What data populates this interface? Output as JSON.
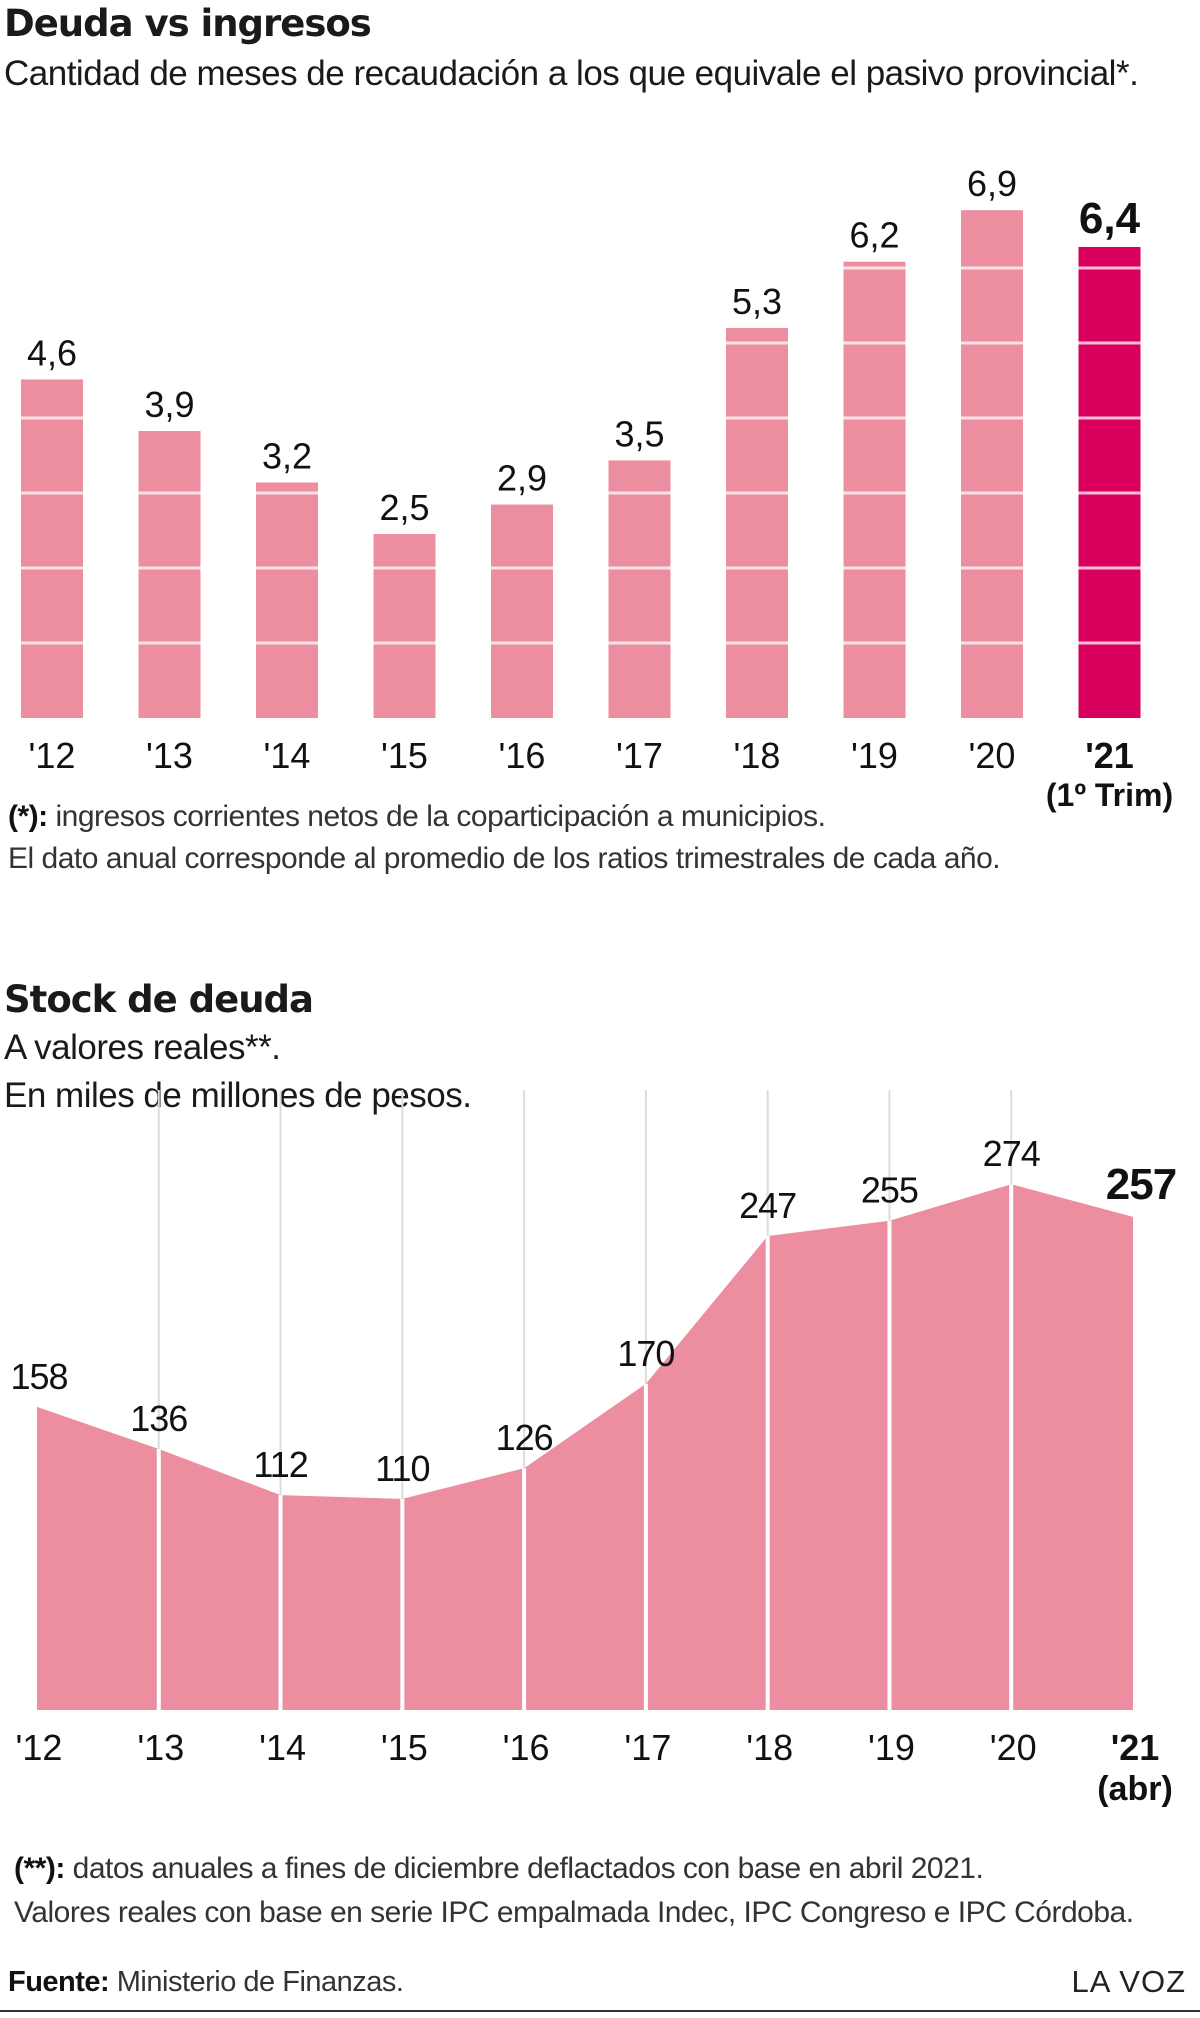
{
  "chart1": {
    "title": "Deuda vs ingresos",
    "subtitle": "Cantidad de meses de recaudación a los que equivale el pasivo provincial*.",
    "footnote_mark": "(*):",
    "footnote_text": " ingresos corrientes netos de la coparticipación a municipios.",
    "footnote_line2": "El dato anual corresponde al promedio de los ratios trimestrales de cada año.",
    "highlight_sublabel": "(1º Trim)"
  },
  "chart2": {
    "title": "Stock de deuda",
    "subtitle1": "A valores reales**.",
    "subtitle2": "En miles de millones de pesos.",
    "footnote_mark": "(**):",
    "footnote_text": " datos anuales a fines de diciembre deflactados con base en abril 2021.",
    "footnote_line2": "Valores reales con base en serie IPC empalmada Indec, IPC Congreso e IPC Córdoba.",
    "highlight_sublabel": "(abr)"
  },
  "footer": {
    "source_label": "Fuente:",
    "source_text": " Ministerio de Finanzas.",
    "brand": "LA VOZ"
  },
  "colors": {
    "bar": "#ec8ea0",
    "highlight": "#d8005c",
    "area": "#ec8ea0"
  },
  "chart_data": [
    {
      "type": "bar",
      "categories": [
        "'12",
        "'13",
        "'14",
        "'15",
        "'16",
        "'17",
        "'18",
        "'19",
        "'20",
        "'21"
      ],
      "values": [
        4.6,
        3.9,
        3.2,
        2.5,
        2.9,
        3.5,
        5.3,
        6.2,
        6.9,
        6.4
      ],
      "labels": [
        "4,6",
        "3,9",
        "3,2",
        "2,5",
        "2,9",
        "3,5",
        "5,3",
        "6,2",
        "6,9",
        "6,4"
      ],
      "highlight_index": 9,
      "ylim": [
        0,
        8
      ],
      "grid": true
    },
    {
      "type": "area",
      "categories": [
        "'12",
        "'13",
        "'14",
        "'15",
        "'16",
        "'17",
        "'18",
        "'19",
        "'20",
        "'21"
      ],
      "values": [
        158,
        136,
        112,
        110,
        126,
        170,
        247,
        255,
        274,
        257
      ],
      "labels": [
        "158",
        "136",
        "112",
        "110",
        "126",
        "170",
        "247",
        "255",
        "274",
        "257"
      ],
      "highlight_index": 9,
      "ylim": [
        0,
        300
      ]
    }
  ]
}
